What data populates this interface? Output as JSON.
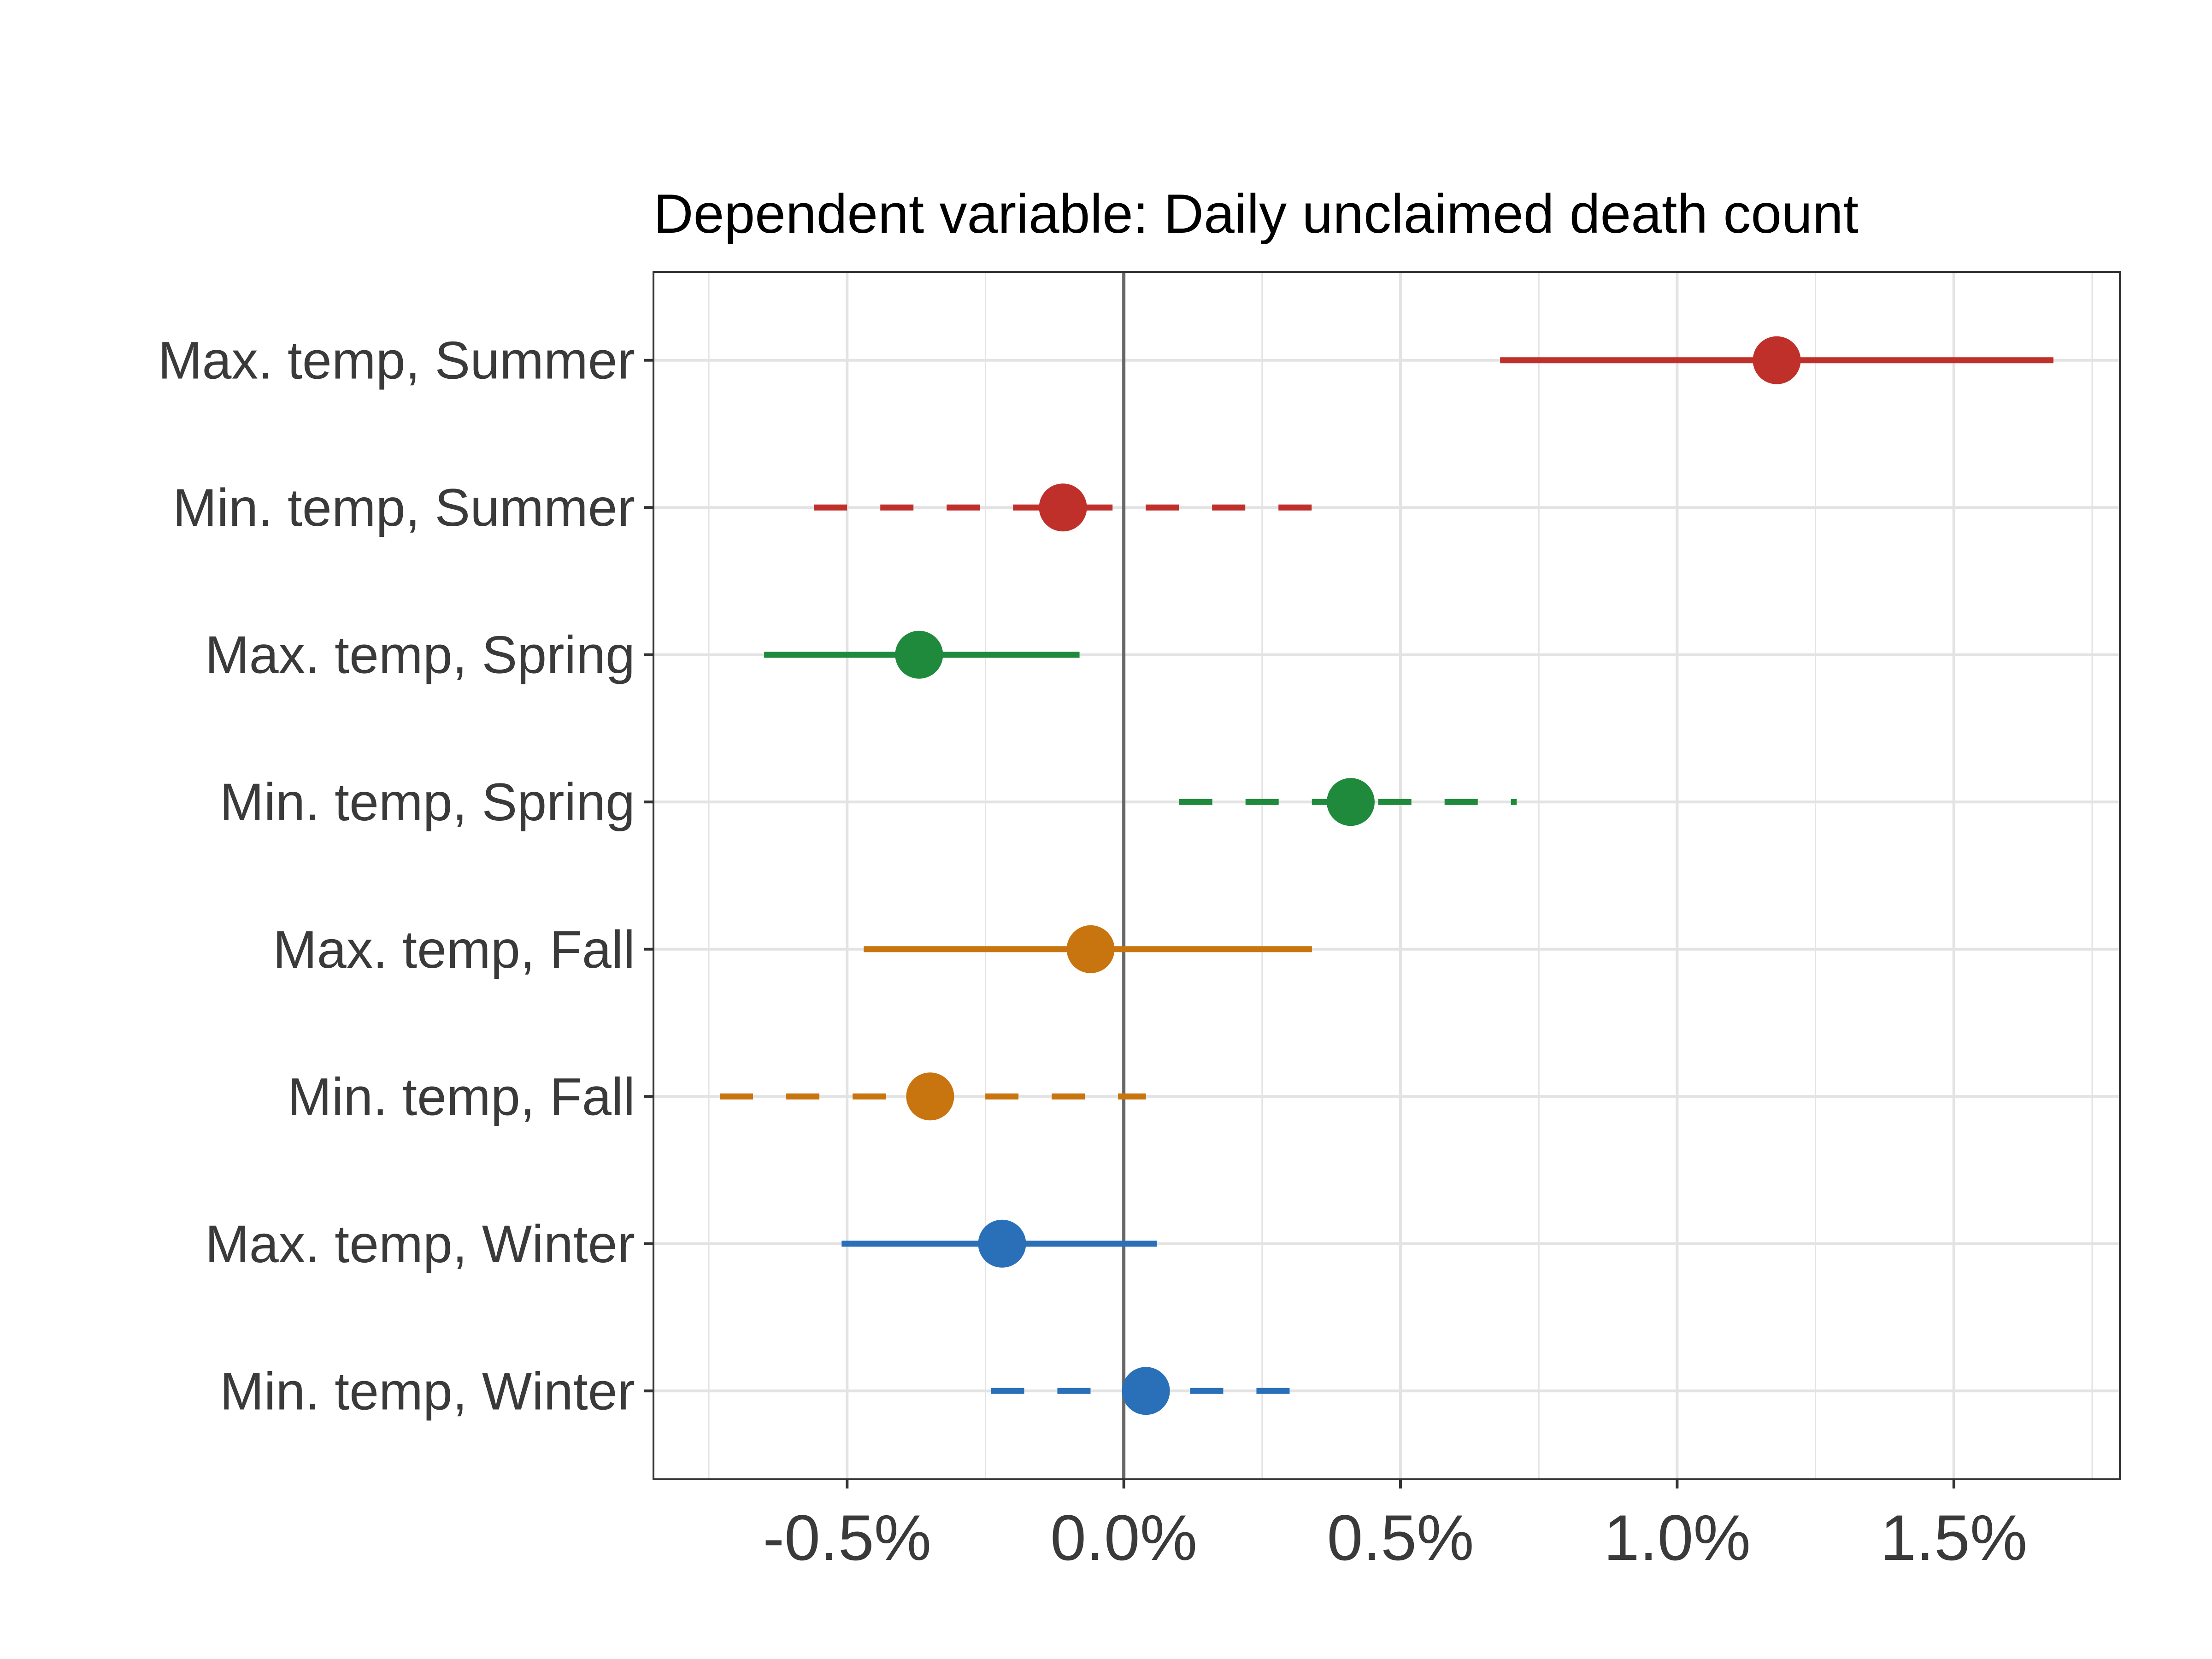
{
  "chart_data": {
    "type": "dot-whisker",
    "title": "Dependent variable: Daily unclaimed death count",
    "xlabel": "",
    "ylabel": "",
    "xlim": [
      -0.85,
      1.8
    ],
    "x_ticks": [
      -0.5,
      0.0,
      0.5,
      1.0,
      1.5
    ],
    "x_tick_labels": [
      "-0.5%",
      "0.0%",
      "0.5%",
      "1.0%",
      "1.5%"
    ],
    "x_minor_gridlines": [
      -0.75,
      -0.25,
      0.25,
      0.75,
      1.25,
      1.75
    ],
    "reference_line_x": 0.0,
    "grid": true,
    "rows": [
      {
        "label": "Max. temp, Summer",
        "estimate": 1.18,
        "low": 0.68,
        "high": 1.68,
        "line_style": "solid",
        "color": "#C0302B"
      },
      {
        "label": "Min. temp, Summer",
        "estimate": -0.11,
        "low": -0.56,
        "high": 0.34,
        "line_style": "dashed",
        "color": "#C0302B"
      },
      {
        "label": "Max. temp, Spring",
        "estimate": -0.37,
        "low": -0.65,
        "high": -0.08,
        "line_style": "solid",
        "color": "#1F8A3C"
      },
      {
        "label": "Min. temp, Spring",
        "estimate": 0.41,
        "low": 0.1,
        "high": 0.71,
        "line_style": "dashed",
        "color": "#1F8A3C"
      },
      {
        "label": "Max. temp, Fall",
        "estimate": -0.06,
        "low": -0.47,
        "high": 0.34,
        "line_style": "solid",
        "color": "#C8740F"
      },
      {
        "label": "Min. temp, Fall",
        "estimate": -0.35,
        "low": -0.73,
        "high": 0.04,
        "line_style": "dashed",
        "color": "#C8740F"
      },
      {
        "label": "Max. temp, Winter",
        "estimate": -0.22,
        "low": -0.51,
        "high": 0.06,
        "line_style": "solid",
        "color": "#2A70B8"
      },
      {
        "label": "Min. temp, Winter",
        "estimate": 0.04,
        "low": -0.24,
        "high": 0.3,
        "line_style": "dashed",
        "color": "#2A70B8"
      }
    ],
    "colors": {
      "summer": "#C0302B",
      "spring": "#1F8A3C",
      "fall": "#C8740F",
      "winter": "#2A70B8",
      "reference_line": "#666666",
      "grid": "#E3E3E3",
      "panel_border": "#333333"
    }
  }
}
